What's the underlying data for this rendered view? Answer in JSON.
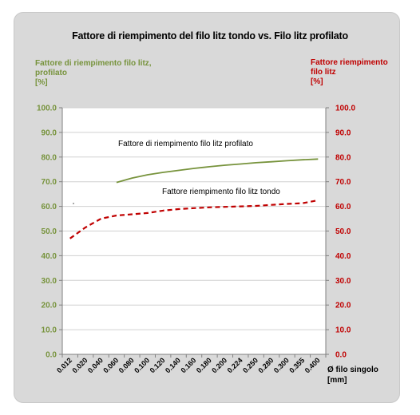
{
  "chart_data": {
    "type": "line",
    "title": "Fattore di riempimento del filo litz tondo vs. Filo litz profilato",
    "ylabel_left": "Fattore di riempimento filo litz, profilato [%]",
    "ylabel_left_lines": [
      "Fattore di riempimento filo litz,",
      "profilato",
      "[%]"
    ],
    "ylabel_right": "Fattore riempimento filo litz [%]",
    "ylabel_right_lines": [
      "Fattore riempimento",
      "filo litz",
      "[%]"
    ],
    "xlabel": "Ø filo singolo [mm]",
    "xlabel_lines": [
      "Ø filo singolo",
      "[mm]"
    ],
    "categories": [
      "0.012",
      "0.020",
      "0.040",
      "0.060",
      "0.080",
      "0.100",
      "0.120",
      "0.140",
      "0.160",
      "0.180",
      "0.200",
      "0.224",
      "0.250",
      "0.280",
      "0.300",
      "0.355",
      "0.400"
    ],
    "ylim": [
      0,
      100
    ],
    "yticks": [
      "0.0",
      "10.0",
      "20.0",
      "30.0",
      "40.0",
      "50.0",
      "60.0",
      "70.0",
      "80.0",
      "90.0",
      "100.0"
    ],
    "colors": {
      "profilato": "#77933c",
      "tondo": "#c00000",
      "left_axis": "#77933c",
      "right_axis": "#c00000"
    },
    "series": [
      {
        "name": "Fattore di riempimento  filo litz profilato",
        "axis": "left",
        "style": "solid",
        "values": [
          null,
          null,
          null,
          69.7,
          71.5,
          72.8,
          73.8,
          74.6,
          75.4,
          76.1,
          76.7,
          77.2,
          77.7,
          78.1,
          78.5,
          78.9,
          79.2
        ]
      },
      {
        "name": "Fattore riempimento filo litz tondo",
        "axis": "right",
        "style": "dashed",
        "values": [
          47.0,
          51.5,
          55.0,
          56.3,
          56.8,
          57.3,
          58.3,
          58.9,
          59.3,
          59.6,
          59.8,
          60.0,
          60.2,
          60.6,
          61.0,
          61.3,
          62.5
        ]
      }
    ],
    "grid": "horizontal"
  }
}
